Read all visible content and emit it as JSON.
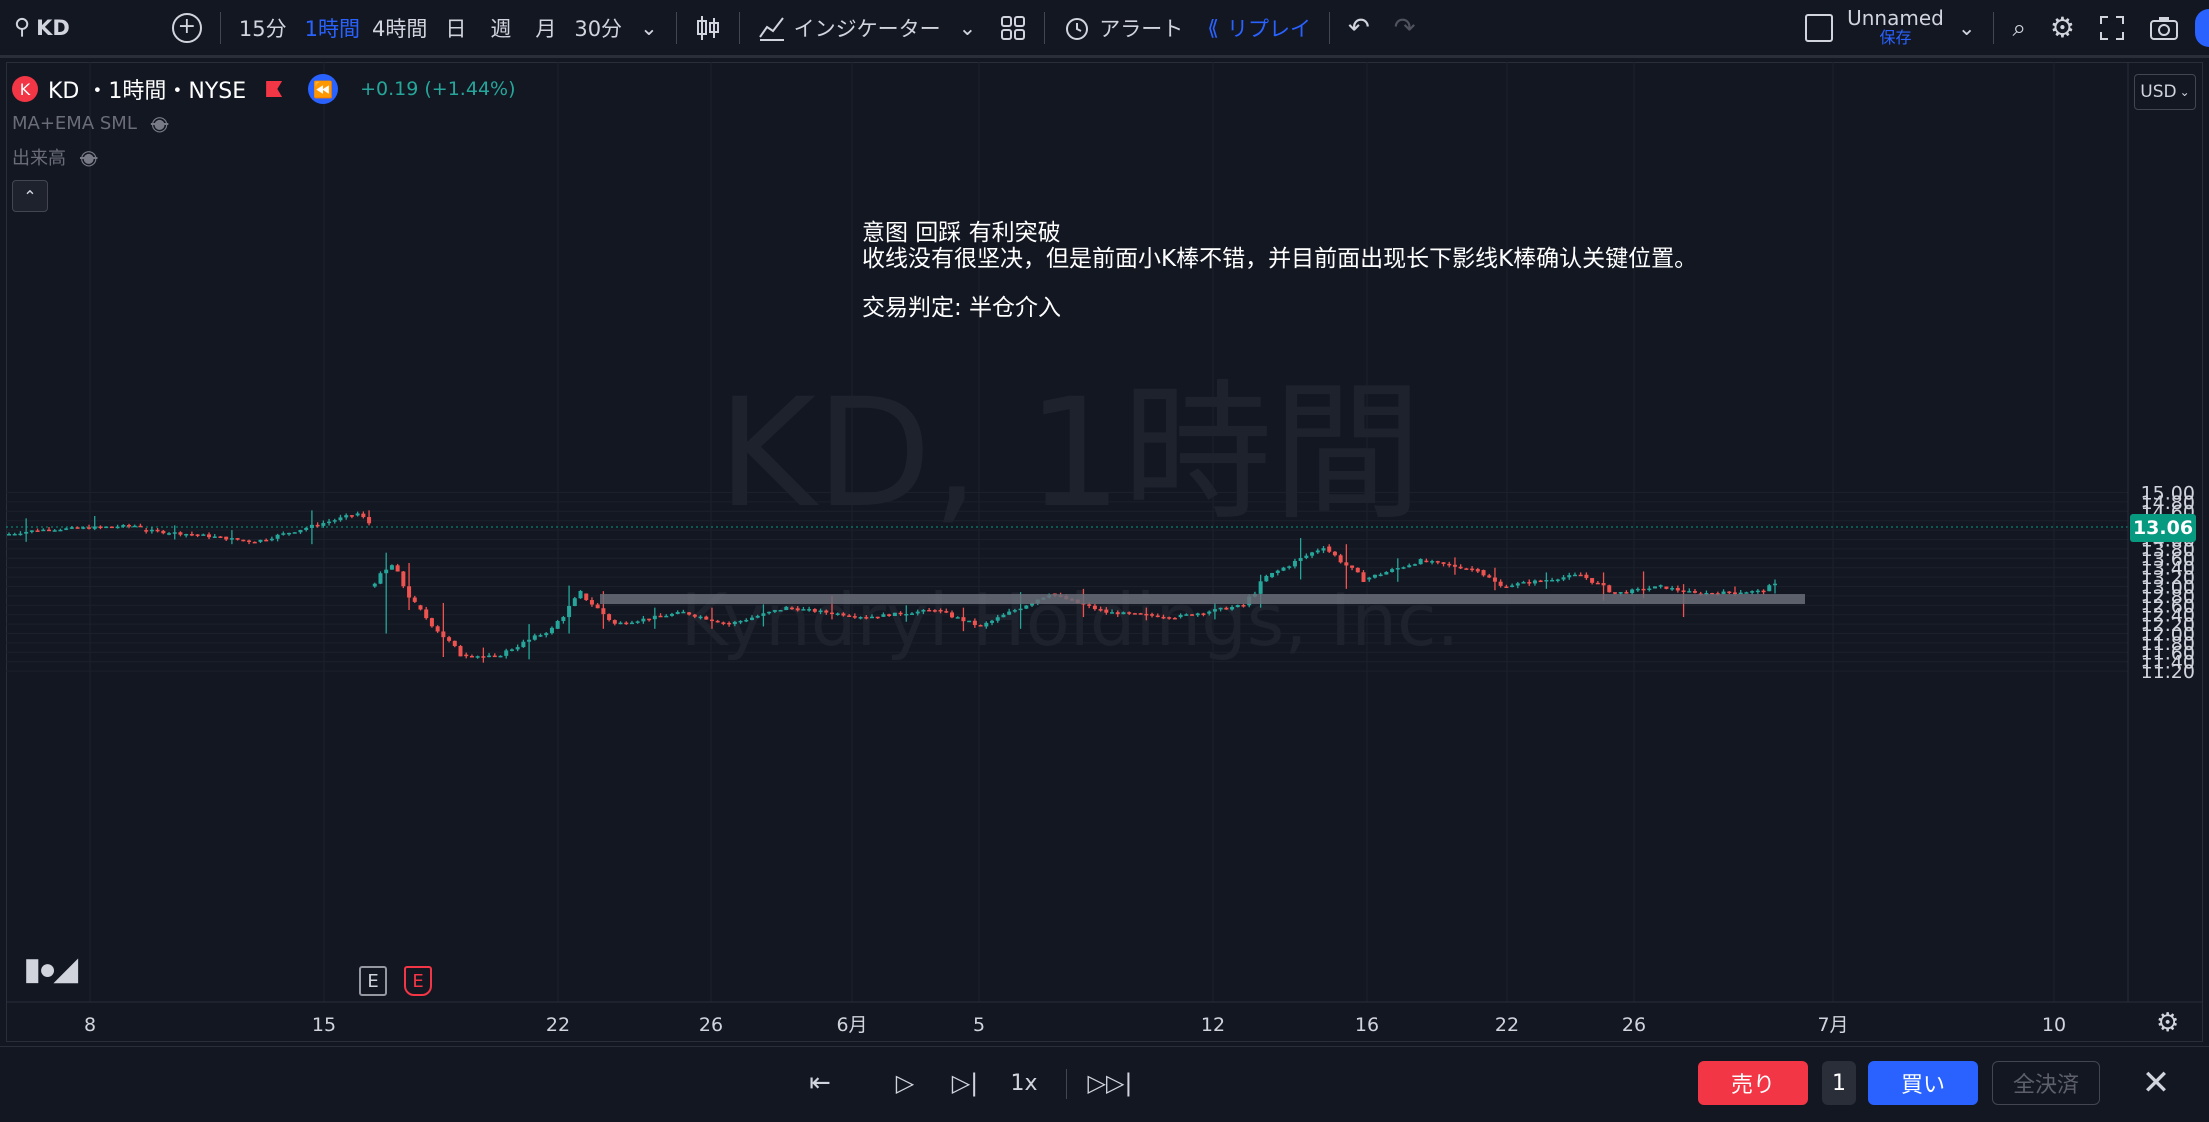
{
  "toolbar": {
    "symbol": "KD",
    "intervals": [
      "15分",
      "1時間",
      "4時間",
      "日",
      "週",
      "月",
      "30分"
    ],
    "active_interval": "1時間",
    "indicators_label": "インジケーター",
    "alert_label": "アラート",
    "replay_label": "リプレイ",
    "layout_name": "Unnamed",
    "save_label": "保存"
  },
  "legend": {
    "badge_letter": "K",
    "title": "KD ・1時間・NYSE",
    "change": "+0.19 (+1.44%)",
    "indicator_1": "MA+EMA SML",
    "indicator_2": "出来高"
  },
  "watermark": {
    "line1": "KD, 1時間",
    "line2": "Kyndryl Holdings, Inc."
  },
  "annotation": {
    "line1": "意图 回踩 有利突破",
    "line2": "收线没有很坚决，但是前面小K棒不错，并目前面出现长下影线K棒确认关键位置。",
    "line3": "交易判定: 半仓介入"
  },
  "price_axis": {
    "currency": "USD",
    "ticks": [
      "15.00",
      "14.80",
      "14.60",
      "14.40",
      "14.20",
      "14.00",
      "13.80",
      "13.60",
      "13.40",
      "13.20",
      "13.00",
      "12.80",
      "12.60",
      "12.40",
      "12.20",
      "12.00",
      "11.80",
      "11.60",
      "11.40",
      "11.20"
    ],
    "current_price": "13.06"
  },
  "time_axis": {
    "labels": [
      "8",
      "15",
      "22",
      "26",
      "6月",
      "5",
      "12",
      "16",
      "22",
      "26",
      "7月",
      "10"
    ]
  },
  "event_markers": [
    "E",
    "E"
  ],
  "replay": {
    "speed": "1x",
    "sell_label": "売り",
    "quantity": "1",
    "buy_label": "買い",
    "close_all_label": "全決済"
  },
  "colors": {
    "background": "#131722",
    "up": "#26a69a",
    "down": "#ef5350",
    "accent": "#2962ff",
    "price_tag": "#089981"
  },
  "chart_data": {
    "type": "candlestick",
    "symbol": "KD",
    "interval": "1時間",
    "exchange": "NYSE",
    "ylim": [
      11.1,
      15.0
    ],
    "current_price": 13.06,
    "support_zone": [
      12.78,
      12.84
    ],
    "x_tick_labels": [
      "8",
      "15",
      "22",
      "26",
      "6月",
      "5",
      "12",
      "16",
      "22",
      "26",
      "7月",
      "10"
    ],
    "y_tick_labels": [
      "15.00",
      "14.80",
      "14.60",
      "14.40",
      "14.20",
      "14.00",
      "13.80",
      "13.60",
      "13.40",
      "13.20",
      "13.00",
      "12.80",
      "12.60",
      "12.40",
      "12.20",
      "12.00",
      "11.80",
      "11.60",
      "11.40",
      "11.20"
    ],
    "segments": [
      {
        "start": 14.1,
        "end": 14.2,
        "high": 14.45,
        "low": 13.95,
        "count": 6
      },
      {
        "start": 14.2,
        "end": 14.3,
        "high": 14.5,
        "low": 14.2,
        "count": 18
      },
      {
        "start": 14.2,
        "end": 14.1,
        "high": 14.3,
        "low": 14.0,
        "count": 10
      },
      {
        "start": 14.1,
        "end": 13.95,
        "high": 14.2,
        "low": 13.9,
        "count": 10
      },
      {
        "start": 13.95,
        "end": 14.55,
        "high": 14.62,
        "low": 13.9,
        "count": 18
      },
      {
        "start": 14.55,
        "end": 14.35,
        "high": 14.62,
        "low": 14.3,
        "count": 2
      },
      {
        "start": 13.0,
        "end": 13.45,
        "high": 13.72,
        "low": 12.0,
        "count": 4
      },
      {
        "start": 13.45,
        "end": 12.6,
        "high": 13.5,
        "low": 12.5,
        "count": 4
      },
      {
        "start": 12.6,
        "end": 11.55,
        "high": 12.65,
        "low": 11.5,
        "count": 8
      },
      {
        "start": 11.55,
        "end": 11.5,
        "high": 11.7,
        "low": 11.38,
        "count": 6
      },
      {
        "start": 11.5,
        "end": 12.1,
        "high": 12.2,
        "low": 11.45,
        "count": 10
      },
      {
        "start": 12.1,
        "end": 12.85,
        "high": 13.02,
        "low": 12.0,
        "count": 5
      },
      {
        "start": 12.85,
        "end": 12.2,
        "high": 12.9,
        "low": 12.1,
        "count": 6
      },
      {
        "start": 12.2,
        "end": 12.45,
        "high": 12.55,
        "low": 12.1,
        "count": 12
      },
      {
        "start": 12.45,
        "end": 12.2,
        "high": 12.55,
        "low": 12.1,
        "count": 8
      },
      {
        "start": 12.2,
        "end": 12.55,
        "high": 12.62,
        "low": 12.15,
        "count": 10
      },
      {
        "start": 12.55,
        "end": 12.35,
        "high": 12.8,
        "low": 12.3,
        "count": 14
      },
      {
        "start": 12.35,
        "end": 12.5,
        "high": 12.6,
        "low": 12.25,
        "count": 12
      },
      {
        "start": 12.5,
        "end": 12.15,
        "high": 12.55,
        "low": 12.05,
        "count": 8
      },
      {
        "start": 12.15,
        "end": 12.85,
        "high": 12.88,
        "low": 12.1,
        "count": 12
      },
      {
        "start": 12.85,
        "end": 12.45,
        "high": 12.95,
        "low": 12.35,
        "count": 10
      },
      {
        "start": 12.45,
        "end": 12.35,
        "high": 12.55,
        "low": 12.28,
        "count": 12
      },
      {
        "start": 12.35,
        "end": 12.6,
        "high": 12.65,
        "low": 12.3,
        "count": 12
      },
      {
        "start": 12.6,
        "end": 13.2,
        "high": 13.25,
        "low": 12.55,
        "count": 4
      },
      {
        "start": 13.2,
        "end": 13.85,
        "high": 14.03,
        "low": 13.15,
        "count": 10
      },
      {
        "start": 13.85,
        "end": 13.15,
        "high": 13.9,
        "low": 12.95,
        "count": 7
      },
      {
        "start": 13.15,
        "end": 13.55,
        "high": 13.6,
        "low": 13.1,
        "count": 10
      },
      {
        "start": 13.55,
        "end": 13.35,
        "high": 13.62,
        "low": 13.25,
        "count": 10
      },
      {
        "start": 13.35,
        "end": 13.0,
        "high": 13.4,
        "low": 12.92,
        "count": 4
      },
      {
        "start": 13.0,
        "end": 13.25,
        "high": 13.3,
        "low": 12.95,
        "count": 14
      },
      {
        "start": 13.25,
        "end": 12.85,
        "high": 13.3,
        "low": 12.7,
        "count": 6
      },
      {
        "start": 12.85,
        "end": 13.0,
        "high": 13.32,
        "low": 12.75,
        "count": 8
      },
      {
        "start": 13.0,
        "end": 12.85,
        "high": 13.05,
        "low": 12.35,
        "count": 6
      },
      {
        "start": 12.85,
        "end": 12.9,
        "high": 13.0,
        "low": 12.8,
        "count": 12
      },
      {
        "start": 12.9,
        "end": 13.06,
        "high": 13.15,
        "low": 12.85,
        "count": 2
      }
    ]
  }
}
